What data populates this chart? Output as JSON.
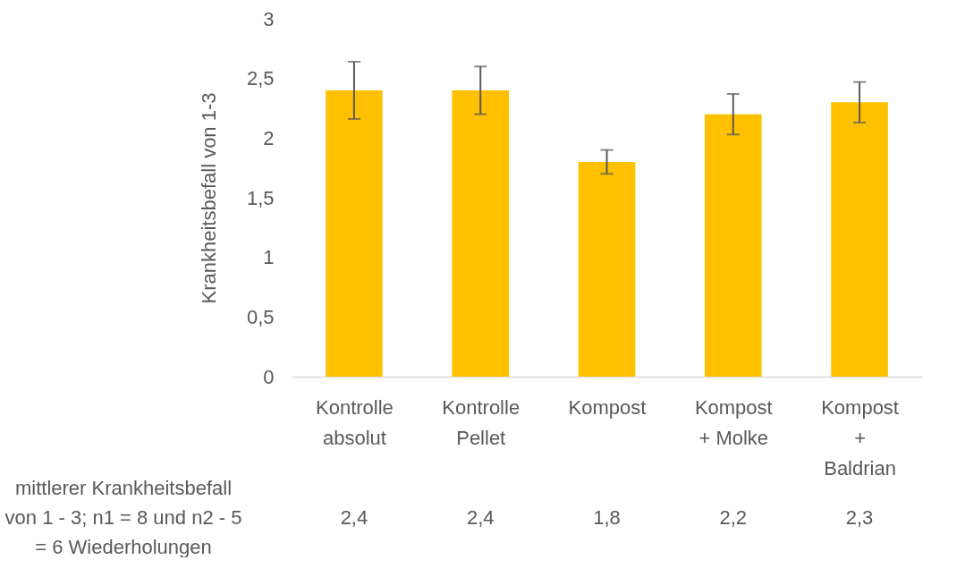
{
  "chart_data": {
    "type": "bar",
    "ylabel": "Krankheitsbefall von 1-3",
    "categories": [
      "Kontrolle absolut",
      "Kontrolle Pellet",
      "Kompost",
      "Kompost + Molke",
      "Kompost + Baldrian"
    ],
    "values": [
      2.4,
      2.4,
      1.8,
      2.2,
      2.3
    ],
    "errors": [
      0.24,
      0.2,
      0.1,
      0.17,
      0.17
    ],
    "color": "#ffc000",
    "ylim": [
      0,
      3
    ],
    "yticks": [
      0,
      {
        "value": 0.5,
        "label": "0,5"
      },
      1,
      {
        "value": 1.5,
        "label": "1,5"
      },
      2,
      {
        "value": 2.5,
        "label": "2,5"
      },
      3
    ],
    "grid": false,
    "value_labels": [
      "2,4",
      "2,4",
      "1,8",
      "2,2",
      "2,3"
    ],
    "annotations": [
      "mittlerer Krankheitsbefall von 1 - 3; n1 = 8 und n2 - 5 = 6 Wiederholungen"
    ]
  }
}
